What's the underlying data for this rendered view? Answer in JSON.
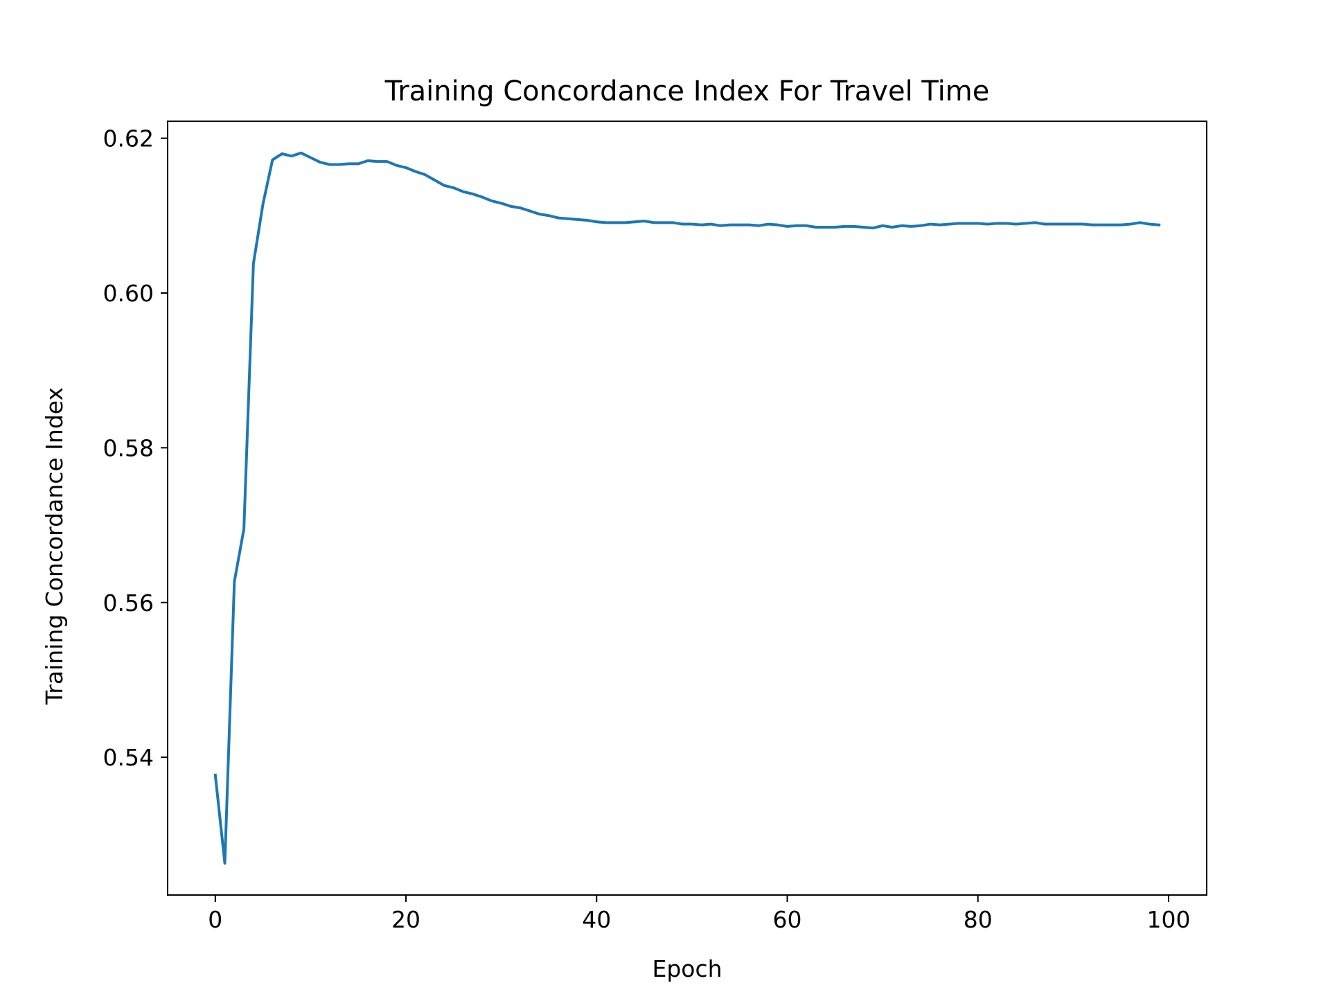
{
  "chart_data": {
    "type": "line",
    "title": "Training Concordance Index For Travel Time",
    "xlabel": "Epoch",
    "ylabel": "Training Concordance Index",
    "xlim": [
      -5,
      104
    ],
    "ylim": [
      0.5222,
      0.6222
    ],
    "xticks": [
      0,
      20,
      40,
      60,
      80,
      100
    ],
    "yticks": [
      0.54,
      0.56,
      0.58,
      0.6,
      0.62
    ],
    "xtick_labels": [
      "0",
      "20",
      "40",
      "60",
      "80",
      "100"
    ],
    "ytick_labels": [
      "0.54",
      "0.56",
      "0.58",
      "0.60",
      "0.62"
    ],
    "grid": false,
    "legend": "none",
    "series": [
      {
        "color": "#1f77b4",
        "x": [
          0,
          1,
          2,
          3,
          4,
          5,
          6,
          7,
          8,
          9,
          10,
          11,
          12,
          13,
          14,
          15,
          16,
          17,
          18,
          19,
          20,
          21,
          22,
          23,
          24,
          25,
          26,
          27,
          28,
          29,
          30,
          31,
          32,
          33,
          34,
          35,
          36,
          37,
          38,
          39,
          40,
          41,
          42,
          43,
          44,
          45,
          46,
          47,
          48,
          49,
          50,
          51,
          52,
          53,
          54,
          55,
          56,
          57,
          58,
          59,
          60,
          61,
          62,
          63,
          64,
          65,
          66,
          67,
          68,
          69,
          70,
          71,
          72,
          73,
          74,
          75,
          76,
          77,
          78,
          79,
          80,
          81,
          82,
          83,
          84,
          85,
          86,
          87,
          88,
          89,
          90,
          91,
          92,
          93,
          94,
          95,
          96,
          97,
          98,
          99
        ],
        "values": [
          0.5377,
          0.5263,
          0.5627,
          0.5695,
          0.6038,
          0.6115,
          0.6172,
          0.618,
          0.6177,
          0.6181,
          0.6175,
          0.6169,
          0.6166,
          0.6166,
          0.6167,
          0.6167,
          0.6171,
          0.617,
          0.617,
          0.6165,
          0.6162,
          0.6157,
          0.6153,
          0.6146,
          0.6139,
          0.6136,
          0.6131,
          0.6128,
          0.6124,
          0.6119,
          0.6116,
          0.6112,
          0.611,
          0.6106,
          0.6102,
          0.61,
          0.6097,
          0.6096,
          0.6095,
          0.6094,
          0.6092,
          0.6091,
          0.6091,
          0.6091,
          0.6092,
          0.6093,
          0.6091,
          0.6091,
          0.6091,
          0.6089,
          0.6089,
          0.6088,
          0.6089,
          0.6087,
          0.6088,
          0.6088,
          0.6088,
          0.6087,
          0.6089,
          0.6088,
          0.6086,
          0.6087,
          0.6087,
          0.6085,
          0.6085,
          0.6085,
          0.6086,
          0.6086,
          0.6085,
          0.6084,
          0.6087,
          0.6085,
          0.6087,
          0.6086,
          0.6087,
          0.6089,
          0.6088,
          0.6089,
          0.609,
          0.609,
          0.609,
          0.6089,
          0.609,
          0.609,
          0.6089,
          0.609,
          0.6091,
          0.6089,
          0.6089,
          0.6089,
          0.6089,
          0.6089,
          0.6088,
          0.6088,
          0.6088,
          0.6088,
          0.6089,
          0.6091,
          0.6089,
          0.6088
        ]
      }
    ]
  }
}
